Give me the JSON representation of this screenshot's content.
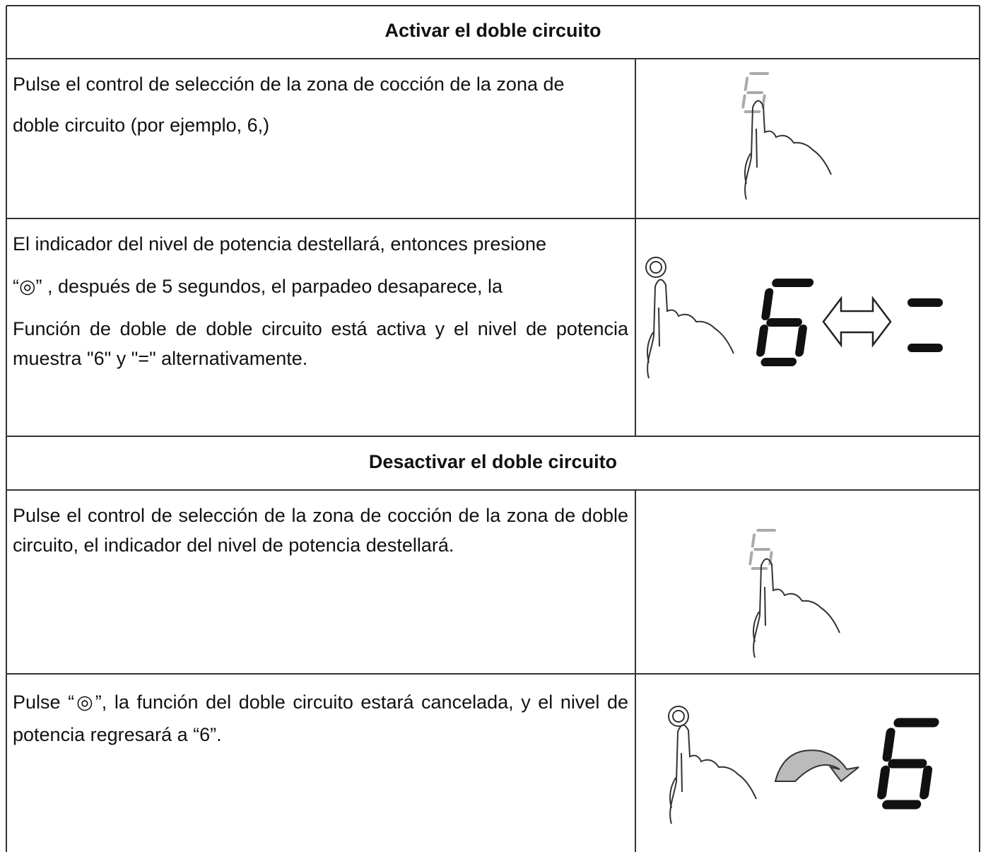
{
  "sections": [
    {
      "title": "Activar el doble circuito",
      "rows": [
        {
          "paragraphs": [
            "Pulse el control de selección de la zona de cocción de la zona de",
            "doble circuito (por ejemplo, 6,)"
          ]
        },
        {
          "paragraphs": [
            "El indicador del nivel de potencia destellará, entonces presione",
            "“◎” , después de 5 segundos, el parpadeo desaparece, la",
            "Función de doble de doble circuito está activa y el nivel de potencia muestra \"6\" y \"=\" alternativamente."
          ]
        }
      ]
    },
    {
      "title": "Desactivar el doble circuito",
      "rows": [
        {
          "paragraphs": [
            "Pulse el control de selección de la zona de cocción de la zona de doble circuito, el indicador del nivel de potencia destellará."
          ]
        },
        {
          "paragraphs": [
            "Pulse “◎”, la función del doble circuito estará cancelada, y el nivel de potencia regresará a “6”."
          ]
        }
      ]
    }
  ]
}
